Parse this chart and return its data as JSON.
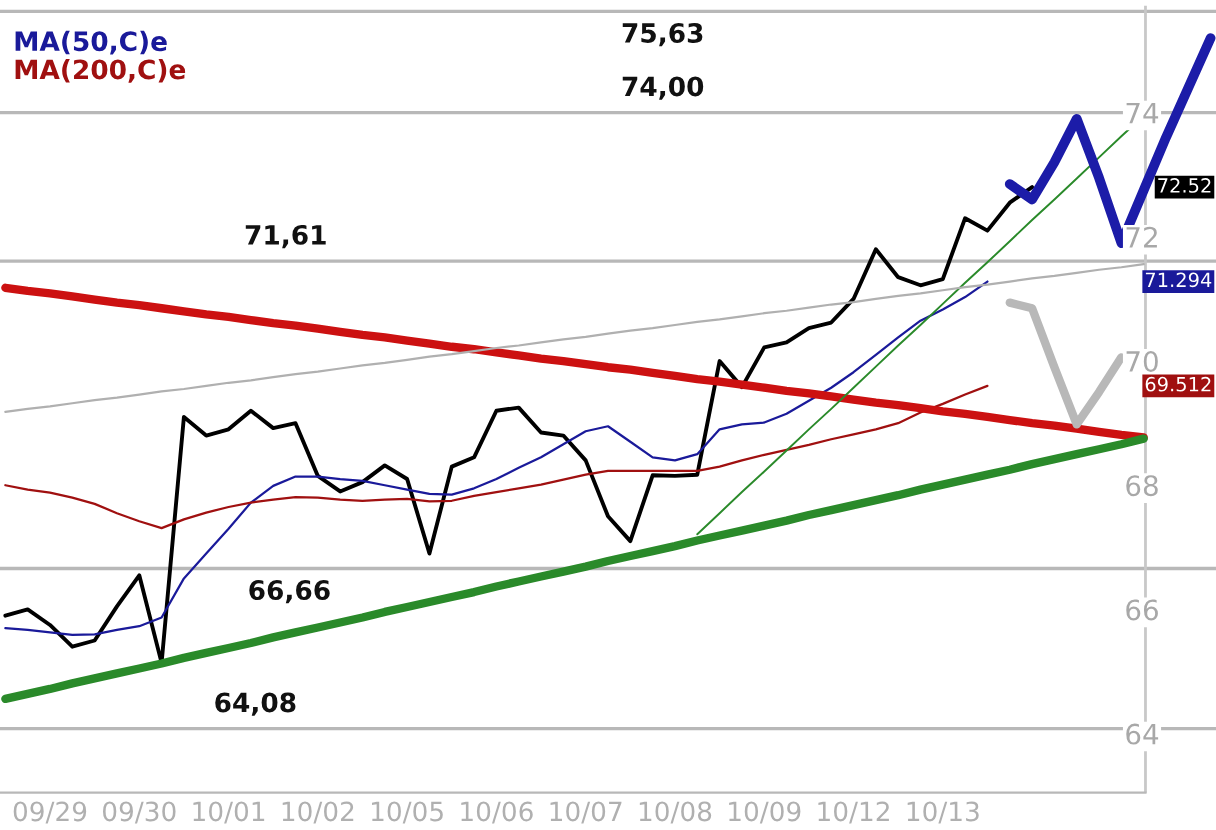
{
  "chart_data": {
    "type": "line",
    "categories": [
      null,
      null,
      "09/29",
      null,
      null,
      null,
      "09/30",
      null,
      null,
      null,
      "10/01",
      null,
      null,
      null,
      "10/02",
      null,
      null,
      null,
      "10/05",
      null,
      null,
      null,
      "10/06",
      null,
      null,
      null,
      "10/07",
      null,
      null,
      null,
      "10/08",
      null,
      null,
      null,
      "10/09",
      null,
      null,
      null,
      "10/12",
      null,
      null,
      null,
      "10/13",
      null,
      null,
      null,
      null,
      null,
      null,
      null,
      null,
      null,
      null,
      null,
      null
    ],
    "ylim": [
      63.05,
      75.72
    ],
    "yticks": [
      64,
      66,
      68,
      70,
      72,
      74
    ],
    "legend": "top left",
    "series": [
      {
        "color": "#000000",
        "values": [
          65.9,
          66.0,
          65.75,
          65.4,
          65.5,
          66.05,
          66.55,
          65.14,
          69.1,
          68.8,
          68.9,
          69.2,
          68.92,
          69.0,
          68.15,
          67.9,
          68.05,
          68.32,
          68.1,
          66.9,
          68.3,
          68.45,
          69.2,
          69.25,
          68.85,
          68.8,
          68.4,
          67.5,
          67.1,
          68.16,
          68.15,
          68.17,
          70.0,
          69.58,
          70.22,
          70.3,
          70.53,
          70.62,
          71.0,
          71.8,
          71.35,
          71.22,
          71.32,
          72.3,
          72.1,
          72.55,
          72.8,
          null,
          null,
          null,
          null,
          null,
          null,
          null,
          null
        ]
      },
      {
        "name": "MA(50,C)e",
        "color": "#1a1a9a",
        "values": [
          65.7,
          65.67,
          65.63,
          65.59,
          65.6,
          65.67,
          65.73,
          65.87,
          66.5,
          66.9,
          67.3,
          67.72,
          67.99,
          68.14,
          68.14,
          68.1,
          68.07,
          68.0,
          67.93,
          67.86,
          67.85,
          67.95,
          68.1,
          68.28,
          68.45,
          68.66,
          68.87,
          68.95,
          68.7,
          68.45,
          68.4,
          68.5,
          68.9,
          68.98,
          69.01,
          69.15,
          69.36,
          69.57,
          69.82,
          70.1,
          70.38,
          70.65,
          70.83,
          71.03,
          71.28,
          null,
          null,
          null,
          null,
          null,
          null,
          null,
          null,
          null,
          null
        ]
      },
      {
        "name": "MA(200,C)e",
        "color": "#a01010",
        "values": [
          68.0,
          67.93,
          67.88,
          67.8,
          67.7,
          67.55,
          67.42,
          67.31,
          67.45,
          67.56,
          67.65,
          67.72,
          67.77,
          67.81,
          67.8,
          67.77,
          67.75,
          67.77,
          67.78,
          67.74,
          67.75,
          67.83,
          67.89,
          67.95,
          68.01,
          68.09,
          68.17,
          68.23,
          68.23,
          68.23,
          68.23,
          68.23,
          68.3,
          68.4,
          68.49,
          68.57,
          68.65,
          68.74,
          68.82,
          68.9,
          69.0,
          69.17,
          69.31,
          69.46,
          69.6,
          null,
          null,
          null,
          null,
          null,
          null,
          null,
          null,
          null,
          null
        ]
      },
      {
        "color": "#cc1111",
        "values": [
          71.18,
          71.13,
          71.09,
          71.04,
          70.99,
          70.94,
          70.9,
          70.85,
          70.8,
          70.75,
          70.71,
          70.66,
          70.61,
          70.57,
          70.52,
          70.47,
          70.42,
          70.38,
          70.33,
          70.28,
          70.23,
          70.19,
          70.14,
          70.09,
          70.04,
          70.0,
          69.95,
          69.9,
          69.86,
          69.81,
          69.76,
          69.71,
          69.67,
          69.62,
          69.57,
          69.52,
          69.48,
          69.43,
          69.38,
          69.33,
          69.29,
          69.24,
          69.19,
          69.15,
          69.1,
          69.05,
          69.0,
          68.96,
          68.91,
          68.86,
          68.81,
          68.77,
          null,
          null,
          null
        ]
      },
      {
        "color": "#2a8a2a",
        "values": [
          64.56,
          64.64,
          64.72,
          64.81,
          64.89,
          64.97,
          65.05,
          65.13,
          65.22,
          65.3,
          65.38,
          65.46,
          65.55,
          65.63,
          65.71,
          65.79,
          65.87,
          65.96,
          66.04,
          66.12,
          66.2,
          66.28,
          66.37,
          66.45,
          66.53,
          66.61,
          66.69,
          66.78,
          66.86,
          66.94,
          67.02,
          67.11,
          67.19,
          67.27,
          67.35,
          67.43,
          67.52,
          67.6,
          67.68,
          67.76,
          67.84,
          67.93,
          68.01,
          68.09,
          68.17,
          68.25,
          68.34,
          68.42,
          68.5,
          68.58,
          68.66,
          68.75,
          null,
          null,
          null
        ]
      },
      {
        "color": "#2a8a2a",
        "values": [
          null,
          null,
          null,
          null,
          null,
          null,
          null,
          null,
          null,
          null,
          null,
          null,
          null,
          null,
          null,
          null,
          null,
          null,
          null,
          null,
          null,
          null,
          null,
          null,
          null,
          null,
          null,
          null,
          null,
          null,
          null,
          67.21,
          67.55,
          67.89,
          68.22,
          68.56,
          68.9,
          69.23,
          69.57,
          69.91,
          70.25,
          70.58,
          70.92,
          71.26,
          71.59,
          71.93,
          72.27,
          72.6,
          72.94,
          73.28,
          73.62,
          73.95,
          null,
          null,
          null
        ]
      },
      {
        "color": "#b0b0b0",
        "values": [
          69.18,
          69.23,
          69.27,
          69.32,
          69.37,
          69.41,
          69.46,
          69.51,
          69.55,
          69.6,
          69.65,
          69.69,
          69.74,
          69.79,
          69.83,
          69.88,
          69.93,
          69.97,
          70.02,
          70.07,
          70.11,
          70.16,
          70.21,
          70.25,
          70.3,
          70.35,
          70.39,
          70.44,
          70.49,
          70.53,
          70.58,
          70.63,
          70.67,
          70.72,
          70.77,
          70.81,
          70.86,
          70.91,
          70.95,
          71.0,
          71.05,
          71.09,
          71.14,
          71.19,
          71.23,
          71.28,
          71.33,
          71.37,
          71.42,
          71.47,
          71.51,
          71.56,
          null,
          null,
          null
        ]
      },
      {
        "color": "#1c1ca8",
        "values": [
          null,
          null,
          null,
          null,
          null,
          null,
          null,
          null,
          null,
          null,
          null,
          null,
          null,
          null,
          null,
          null,
          null,
          null,
          null,
          null,
          null,
          null,
          null,
          null,
          null,
          null,
          null,
          null,
          null,
          null,
          null,
          null,
          null,
          null,
          null,
          null,
          null,
          null,
          null,
          null,
          null,
          null,
          null,
          null,
          null,
          72.85,
          72.6,
          73.2,
          73.9,
          72.95,
          71.9,
          72.75,
          73.6,
          74.4,
          75.2
        ]
      },
      {
        "color": "#b8b8b8",
        "values": [
          null,
          null,
          null,
          null,
          null,
          null,
          null,
          null,
          null,
          null,
          null,
          null,
          null,
          null,
          null,
          null,
          null,
          null,
          null,
          null,
          null,
          null,
          null,
          null,
          null,
          null,
          null,
          null,
          null,
          null,
          null,
          null,
          null,
          null,
          null,
          null,
          null,
          null,
          null,
          null,
          null,
          null,
          null,
          null,
          null,
          70.94,
          70.85,
          69.9,
          68.98,
          69.5,
          70.06,
          null,
          null,
          null,
          null
        ]
      }
    ],
    "ref_lines": [
      {
        "axis": "y",
        "value": 75.63,
        "color": "#b8b8b8"
      },
      {
        "axis": "y",
        "value": 74.0,
        "color": "#b8b8b8"
      },
      {
        "axis": "y",
        "value": 71.61,
        "color": "#b8b8b8"
      },
      {
        "axis": "y",
        "value": 66.66,
        "color": "#b8b8b8"
      },
      {
        "axis": "y",
        "value": 64.08,
        "color": "#b8b8b8"
      }
    ],
    "annotations": [
      {
        "text": "75,63",
        "y": 75.63
      },
      {
        "text": "74,00",
        "y": 74.0
      },
      {
        "text": "71,61",
        "y": 71.61
      },
      {
        "text": "66,66",
        "y": 66.66
      },
      {
        "text": "64,08",
        "y": 64.08
      },
      "72.52",
      "71.294",
      "69.512"
    ]
  }
}
